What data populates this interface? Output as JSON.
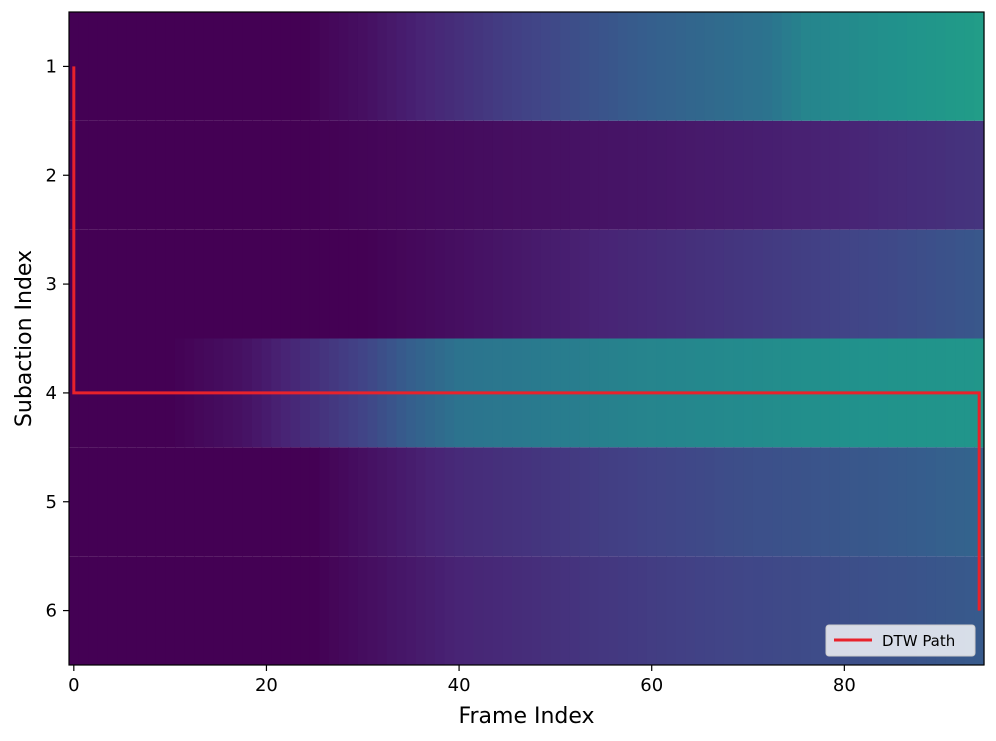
{
  "chart_data": {
    "type": "heatmap",
    "title": "",
    "xlabel": "Frame Index",
    "ylabel": "Subaction Index",
    "x_ticks": [
      0,
      20,
      40,
      60,
      80
    ],
    "y_ticks": [
      1,
      2,
      3,
      4,
      5,
      6
    ],
    "x_tick_labels": [
      "0",
      "20",
      "40",
      "60",
      "80"
    ],
    "y_tick_labels": [
      "1",
      "2",
      "3",
      "4",
      "5",
      "6"
    ],
    "xlim": [
      -0.5,
      94.5
    ],
    "ylim": [
      6.5,
      0.5
    ],
    "n_frames": 95,
    "n_subactions": 6,
    "colormap": "viridis",
    "rows": [
      {
        "subaction": 1,
        "profile": [
          [
            0,
            0.0
          ],
          [
            24,
            0.0
          ],
          [
            30,
            0.04
          ],
          [
            45,
            0.18
          ],
          [
            60,
            0.3
          ],
          [
            72,
            0.38
          ],
          [
            76,
            0.45
          ],
          [
            94,
            0.55
          ]
        ]
      },
      {
        "subaction": 2,
        "profile": [
          [
            0,
            0.0
          ],
          [
            25,
            0.0
          ],
          [
            40,
            0.03
          ],
          [
            60,
            0.06
          ],
          [
            80,
            0.1
          ],
          [
            94,
            0.15
          ]
        ]
      },
      {
        "subaction": 3,
        "profile": [
          [
            0,
            0.0
          ],
          [
            30,
            0.0
          ],
          [
            40,
            0.04
          ],
          [
            55,
            0.1
          ],
          [
            70,
            0.16
          ],
          [
            85,
            0.22
          ],
          [
            94,
            0.27
          ]
        ]
      },
      {
        "subaction": 4,
        "profile": [
          [
            0,
            0.0
          ],
          [
            10,
            0.0
          ],
          [
            18,
            0.05
          ],
          [
            30,
            0.2
          ],
          [
            35,
            0.3
          ],
          [
            40,
            0.38
          ],
          [
            60,
            0.45
          ],
          [
            80,
            0.5
          ],
          [
            94,
            0.52
          ]
        ]
      },
      {
        "subaction": 5,
        "profile": [
          [
            0,
            0.0
          ],
          [
            25,
            0.0
          ],
          [
            40,
            0.12
          ],
          [
            55,
            0.18
          ],
          [
            70,
            0.24
          ],
          [
            85,
            0.28
          ],
          [
            94,
            0.32
          ]
        ]
      },
      {
        "subaction": 6,
        "profile": [
          [
            0,
            0.0
          ],
          [
            25,
            0.0
          ],
          [
            40,
            0.1
          ],
          [
            55,
            0.16
          ],
          [
            70,
            0.21
          ],
          [
            85,
            0.25
          ],
          [
            94,
            0.28
          ]
        ]
      }
    ],
    "series": [
      {
        "name": "DTW Path",
        "color": "#e8222b",
        "x": [
          0,
          0,
          94,
          94
        ],
        "y": [
          1,
          4,
          4,
          6
        ]
      }
    ],
    "legend": {
      "labels": [
        "DTW Path"
      ],
      "placement": "lower-right"
    },
    "grid": false
  }
}
